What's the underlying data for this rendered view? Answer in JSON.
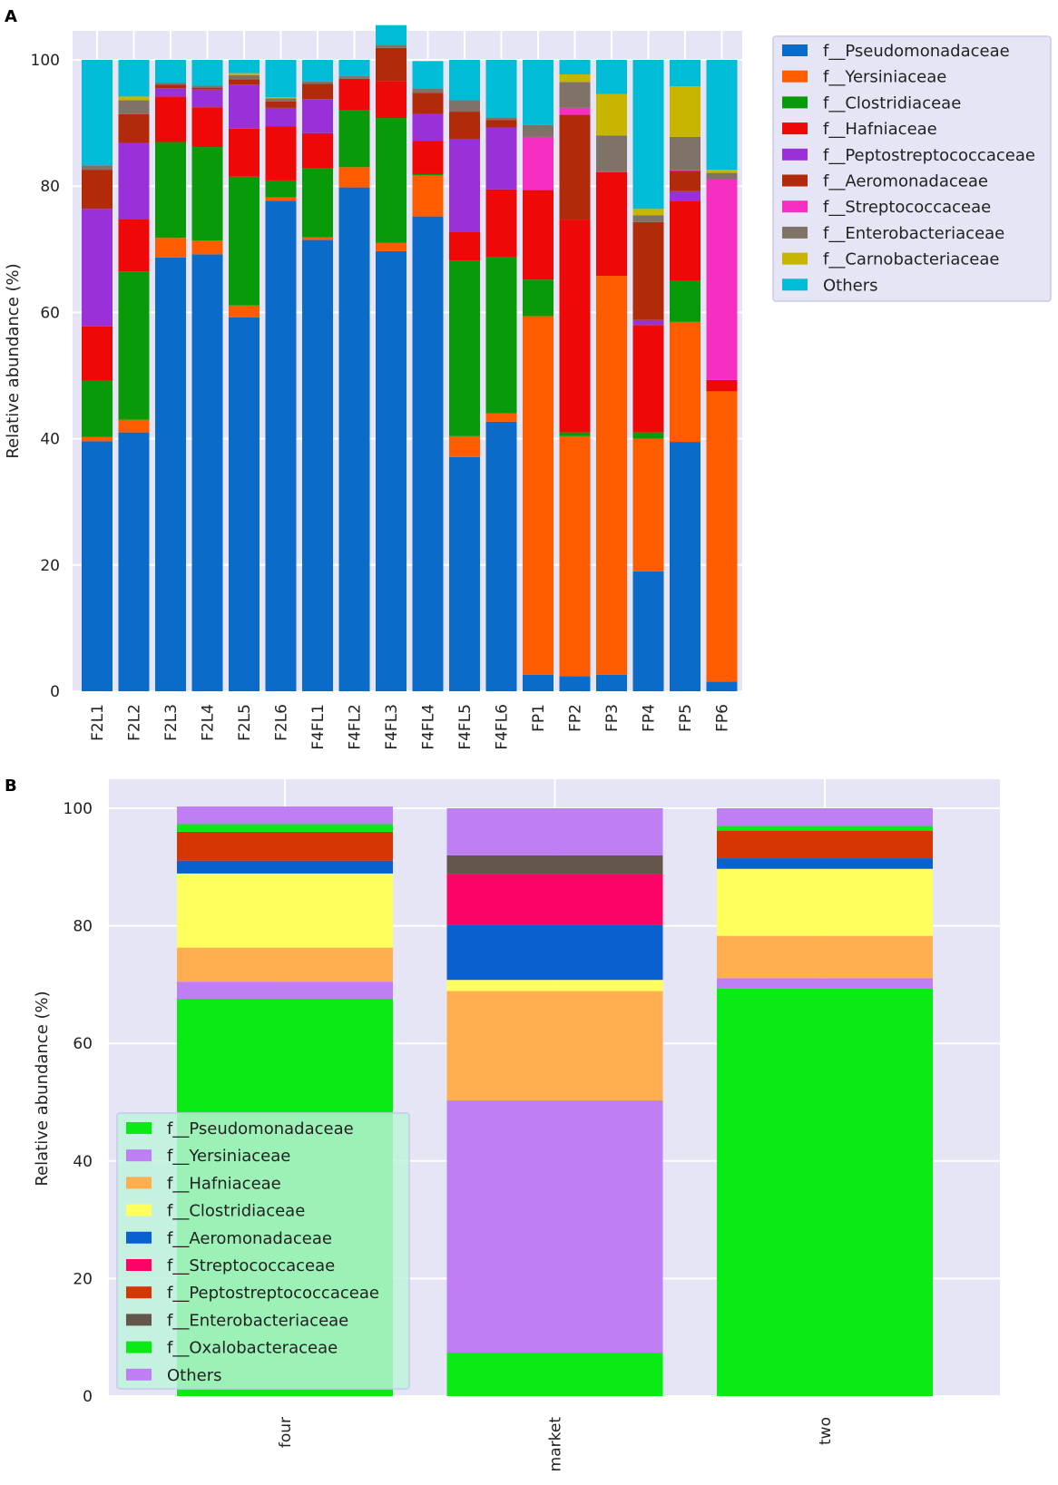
{
  "chart_data": [
    {
      "panel": "A",
      "type": "bar",
      "stacked": true,
      "title": "",
      "xlabel": "",
      "ylabel": "Relative abundance (%)",
      "ylim": [
        0,
        100
      ],
      "yticks": [
        0,
        20,
        40,
        60,
        80,
        100
      ],
      "grid": true,
      "legend_position": "outside-top-right",
      "categories": [
        "F2L1",
        "F2L2",
        "F2L3",
        "F2L4",
        "F2L5",
        "F2L6",
        "F4FL1",
        "F4FL2",
        "F4FL3",
        "F4FL4",
        "F4FL5",
        "F4FL6",
        "FP1",
        "FP2",
        "FP3",
        "FP4",
        "FP5",
        "FP6"
      ],
      "series": [
        {
          "name": "f__Pseudomonadaceae",
          "color": "#0a6bc8",
          "values": [
            39.6,
            41.0,
            68.7,
            69.2,
            59.2,
            77.7,
            71.5,
            79.8,
            69.7,
            75.2,
            37.1,
            42.7,
            2.6,
            2.4,
            2.6,
            19.0,
            39.5,
            1.5
          ]
        },
        {
          "name": "f__Yersiniaceae",
          "color": "#ff5c00",
          "values": [
            0.7,
            2.0,
            3.1,
            2.2,
            1.9,
            0.5,
            0.4,
            3.2,
            1.3,
            6.5,
            3.3,
            1.3,
            56.8,
            38.0,
            63.2,
            21.0,
            19.0,
            46.0
          ]
        },
        {
          "name": "f__Clostridiaceae",
          "color": "#089a08",
          "values": [
            8.9,
            23.5,
            15.2,
            14.8,
            20.4,
            2.7,
            11.0,
            9.0,
            19.8,
            0.2,
            27.8,
            24.7,
            5.8,
            0.6,
            0.0,
            1.0,
            6.5,
            0.0
          ]
        },
        {
          "name": "f__Hafniaceae",
          "color": "#ee0808",
          "values": [
            8.6,
            8.3,
            7.2,
            6.3,
            7.6,
            8.6,
            5.5,
            5.0,
            5.8,
            5.3,
            4.5,
            10.8,
            14.2,
            33.7,
            16.4,
            17.0,
            12.7,
            1.8
          ]
        },
        {
          "name": "f__Peptostreptococcaceae",
          "color": "#9930d8",
          "values": [
            18.6,
            12.0,
            1.3,
            2.8,
            7.0,
            2.9,
            5.4,
            0.0,
            0.0,
            4.2,
            14.8,
            9.8,
            0.0,
            0.0,
            0.0,
            0.8,
            1.5,
            0.0
          ]
        },
        {
          "name": "f__Aeromonadaceae",
          "color": "#b12a0a",
          "values": [
            6.2,
            4.6,
            0.6,
            0.3,
            0.8,
            1.0,
            2.4,
            0.0,
            5.3,
            3.4,
            4.3,
            1.2,
            0.0,
            16.6,
            0.0,
            15.5,
            3.2,
            0.0
          ]
        },
        {
          "name": "f__Streptococcaceae",
          "color": "#f72ec2",
          "values": [
            0.0,
            0.0,
            0.0,
            0.0,
            0.0,
            0.0,
            0.0,
            0.0,
            0.0,
            0.0,
            0.0,
            0.0,
            8.4,
            1.1,
            0.0,
            0.0,
            0.2,
            31.8
          ]
        },
        {
          "name": "f__Enterobacteriaceae",
          "color": "#7f7367",
          "values": [
            0.7,
            2.2,
            0.3,
            0.3,
            0.7,
            0.5,
            0.4,
            0.4,
            0.5,
            0.7,
            1.8,
            0.4,
            1.9,
            4.1,
            5.8,
            1.1,
            5.2,
            1.0
          ]
        },
        {
          "name": "f__Carnobacteriaceae",
          "color": "#c7b500",
          "values": [
            0.0,
            0.6,
            0.0,
            0.0,
            0.3,
            0.2,
            0.0,
            0.0,
            0.0,
            0.0,
            0.0,
            0.0,
            0.0,
            1.2,
            6.6,
            1.0,
            8.0,
            0.5
          ]
        },
        {
          "name": "Others",
          "color": "#00bcd6",
          "values": [
            16.7,
            5.8,
            3.6,
            4.1,
            2.1,
            5.9,
            3.4,
            2.6,
            3.1,
            4.3,
            6.4,
            9.1,
            10.3,
            2.3,
            5.4,
            23.6,
            4.2,
            17.4
          ]
        }
      ]
    },
    {
      "panel": "B",
      "type": "bar",
      "stacked": true,
      "title": "",
      "xlabel": "",
      "ylabel": "Relative abundance (%)",
      "ylim": [
        0,
        100
      ],
      "yticks": [
        0,
        20,
        40,
        60,
        80,
        100
      ],
      "grid": true,
      "legend_position": "lower-left",
      "categories": [
        "four",
        "market",
        "two"
      ],
      "series": [
        {
          "name": "f__Pseudomonadaceae",
          "color": "#0aea14",
          "values": [
            67.6,
            7.4,
            69.3
          ]
        },
        {
          "name": "f__Yersiniaceae",
          "color": "#c07ef4",
          "values": [
            2.9,
            42.9,
            1.8
          ]
        },
        {
          "name": "f__Hafniaceae",
          "color": "#ffaf50",
          "values": [
            5.8,
            18.6,
            7.2
          ]
        },
        {
          "name": "f__Clostridiaceae",
          "color": "#ffff5e",
          "values": [
            12.6,
            1.9,
            11.4
          ]
        },
        {
          "name": "f__Aeromonadaceae",
          "color": "#0a60cf",
          "values": [
            2.2,
            9.3,
            1.8
          ]
        },
        {
          "name": "f__Streptococcaceae",
          "color": "#fb0466",
          "values": [
            0.0,
            8.7,
            0.0
          ]
        },
        {
          "name": "f__Peptostreptococcaceae",
          "color": "#d63504",
          "values": [
            4.9,
            0.0,
            4.7
          ]
        },
        {
          "name": "f__Enterobacteriaceae",
          "color": "#65564b",
          "values": [
            0.0,
            3.2,
            0.0
          ]
        },
        {
          "name": "f__Oxalobacteraceae",
          "color": "#0aea14",
          "values": [
            1.3,
            0.0,
            0.8
          ]
        },
        {
          "name": "Others",
          "color": "#c07ef4",
          "values": [
            3.0,
            8.0,
            3.0
          ]
        }
      ]
    }
  ]
}
